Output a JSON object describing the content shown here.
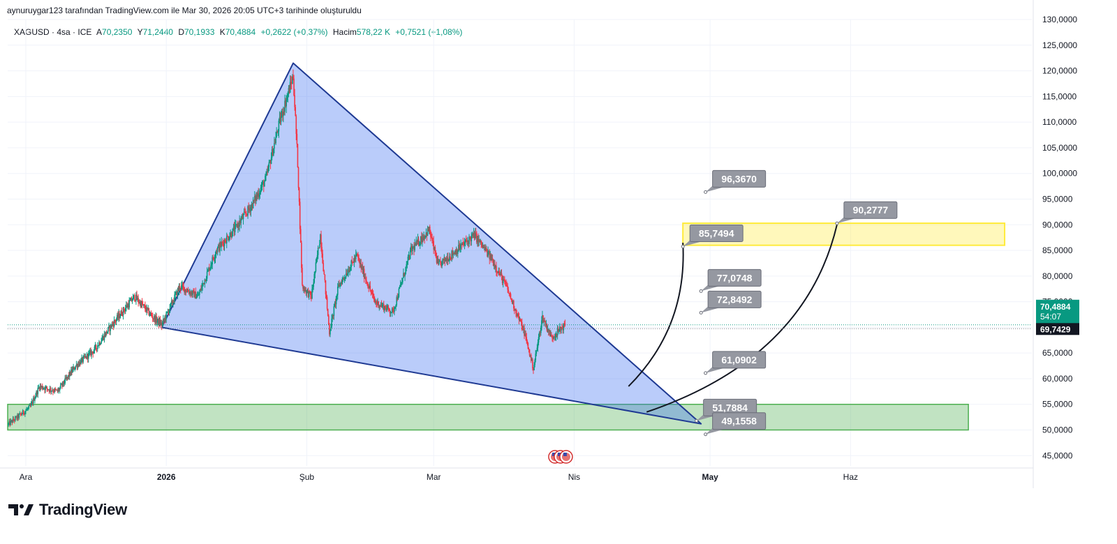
{
  "caption": "aynuruygar123 tarafından TradingView.com ile Mar 30, 2026 20:05 UTC+3 tarihinde oluşturuldu",
  "legend": {
    "symbol": "XAGUSD · 4sa · ICE",
    "o_label": "A",
    "o_value": "70,2350",
    "h_label": "Y",
    "h_value": "71,2440",
    "l_label": "D",
    "l_value": "70,1933",
    "c_label": "K",
    "c_value": "70,4884",
    "change": "+0,2622 (+0,37%)",
    "vol_label": "Hacim",
    "vol_value": "578,22 K",
    "vol_change": "+0,7521 (+1,08%)"
  },
  "brand": {
    "name": "TradingView"
  },
  "colors": {
    "up": "#089981",
    "down": "#f23645",
    "triangle_fill": "#3a6df0",
    "triangle_stroke": "#1f3a93",
    "green_zone": "#4caf50",
    "yellow_zone": "#ffeb3b",
    "callout": "#9598a1",
    "last_price": "#089981",
    "prev_price": "#131722"
  },
  "chart_data": {
    "type": "candlestick",
    "title": "",
    "symbol": "XAGUSD",
    "interval": "4sa",
    "xlabel": "",
    "ylabel": "",
    "y_range": [
      43,
      130
    ],
    "y_ticks": [
      "130,0000",
      "125,0000",
      "120,0000",
      "115,0000",
      "110,0000",
      "105,0000",
      "100,0000",
      "95,0000",
      "90,0000",
      "85,0000",
      "80,0000",
      "75,0000",
      "70,0000",
      "65,0000",
      "60,0000",
      "55,0000",
      "50,0000",
      "45,0000"
    ],
    "y_tick_values": [
      130,
      125,
      120,
      115,
      110,
      105,
      100,
      95,
      90,
      85,
      80,
      75,
      70,
      65,
      60,
      55,
      50,
      45
    ],
    "x_range": [
      "2025-11-27",
      "2026-07-11"
    ],
    "x_ticks": [
      {
        "label": "Ara",
        "date": "2025-12-01",
        "bold": false
      },
      {
        "label": "2026",
        "date": "2026-01-01",
        "bold": true
      },
      {
        "label": "Şub",
        "date": "2026-02-01",
        "bold": false
      },
      {
        "label": "Mar",
        "date": "2026-03-01",
        "bold": false
      },
      {
        "label": "Nis",
        "date": "2026-04-01",
        "bold": false
      },
      {
        "label": "May",
        "date": "2026-05-01",
        "bold": true
      },
      {
        "label": "Haz",
        "date": "2026-06-01",
        "bold": false
      }
    ],
    "price_path": [
      [
        "2025-11-27",
        51.0
      ],
      [
        "2025-12-02",
        54.5
      ],
      [
        "2025-12-04",
        58.5
      ],
      [
        "2025-12-08",
        57.5
      ],
      [
        "2025-12-12",
        62.5
      ],
      [
        "2025-12-16",
        65.5
      ],
      [
        "2025-12-20",
        70.5
      ],
      [
        "2025-12-25",
        76.0
      ],
      [
        "2025-12-29",
        72.0
      ],
      [
        "2025-12-31",
        70.5
      ],
      [
        "2026-01-04",
        78.0
      ],
      [
        "2026-01-08",
        76.0
      ],
      [
        "2026-01-12",
        85.0
      ],
      [
        "2026-01-16",
        89.0
      ],
      [
        "2026-01-20",
        94.0
      ],
      [
        "2026-01-23",
        99.0
      ],
      [
        "2026-01-26",
        110.0
      ],
      [
        "2026-01-29",
        119.0
      ],
      [
        "2026-01-30",
        102.0
      ],
      [
        "2026-01-31",
        78.0
      ],
      [
        "2026-02-02",
        76.0
      ],
      [
        "2026-02-04",
        88.0
      ],
      [
        "2026-02-06",
        69.0
      ],
      [
        "2026-02-08",
        78.0
      ],
      [
        "2026-02-12",
        84.0
      ],
      [
        "2026-02-16",
        75.0
      ],
      [
        "2026-02-20",
        73.0
      ],
      [
        "2026-02-24",
        85.0
      ],
      [
        "2026-02-28",
        89.0
      ],
      [
        "2026-03-02",
        82.0
      ],
      [
        "2026-03-06",
        85.0
      ],
      [
        "2026-03-10",
        88.0
      ],
      [
        "2026-03-14",
        83.0
      ],
      [
        "2026-03-17",
        78.0
      ],
      [
        "2026-03-21",
        69.0
      ],
      [
        "2026-03-23",
        62.0
      ],
      [
        "2026-03-25",
        72.0
      ],
      [
        "2026-03-27",
        68.0
      ],
      [
        "2026-03-30",
        70.5
      ]
    ],
    "last_price": "70,4884",
    "countdown": "54:07",
    "prev_price": "69,7429",
    "drawings": {
      "triangle": [
        [
          "2025-12-31",
          70.0
        ],
        [
          "2026-01-29",
          121.5
        ],
        [
          "2026-04-29",
          51.2
        ]
      ],
      "green_zone": {
        "from": "2025-11-27",
        "to": "2026-06-27",
        "low": 50.0,
        "high": 55.0
      },
      "yellow_zone": {
        "from": "2026-04-25",
        "to": "2026-07-05",
        "low": 86.0,
        "high": 90.3
      },
      "callouts": [
        {
          "label": "96,3670",
          "date": "2026-04-30",
          "price": 96.367
        },
        {
          "label": "90,2777",
          "date": "2026-05-29",
          "price": 90.2777
        },
        {
          "label": "85,7494",
          "date": "2026-04-25",
          "price": 85.7494
        },
        {
          "label": "77,0748",
          "date": "2026-04-29",
          "price": 77.0748
        },
        {
          "label": "72,8492",
          "date": "2026-04-29",
          "price": 72.8492
        },
        {
          "label": "61,0902",
          "date": "2026-04-30",
          "price": 61.0902
        },
        {
          "label": "51,7884",
          "date": "2026-04-28",
          "price": 51.7884
        },
        {
          "label": "49,1558",
          "date": "2026-04-30",
          "price": 49.1558
        }
      ],
      "curves": [
        [
          [
            "2026-04-13",
            58.5
          ],
          [
            "2026-04-26",
            70.0
          ],
          [
            "2026-04-25",
            86.5
          ]
        ],
        [
          [
            "2026-04-17",
            53.5
          ],
          [
            "2026-05-22",
            64.0
          ],
          [
            "2026-05-29",
            90.0
          ]
        ]
      ]
    }
  }
}
